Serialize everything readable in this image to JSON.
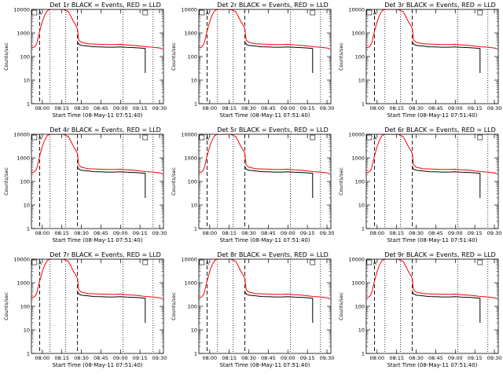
{
  "chart_data": [
    {
      "type": "line",
      "title": "Det 1r BLACK = Events, RED = LLD"
    },
    {
      "type": "line",
      "title": "Det 2r BLACK = Events, RED = LLD"
    },
    {
      "type": "line",
      "title": "Det 3r BLACK = Events, RED = LLD"
    },
    {
      "type": "line",
      "title": "Det 4r BLACK = Events, RED = LLD"
    },
    {
      "type": "line",
      "title": "Det 5r BLACK = Events, RED = LLD"
    },
    {
      "type": "line",
      "title": "Det 6r BLACK = Events, RED = LLD"
    },
    {
      "type": "line",
      "title": "Det 7r BLACK = Events, RED = LLD"
    },
    {
      "type": "line",
      "title": "Det 8r BLACK = Events, RED = LLD"
    },
    {
      "type": "line",
      "title": "Det 9r BLACK = Events, RED = LLD"
    }
  ],
  "shared": {
    "xlabel": "Start Time (08-May-11 07:51:40)",
    "ylabel": "Counts/sec",
    "x_ticks": [
      "08:00",
      "08:15",
      "08:30",
      "08:45",
      "09:00",
      "09:15",
      "09:30"
    ],
    "x_tick_minutes": [
      0,
      15,
      30,
      45,
      60,
      75,
      90
    ],
    "xlim_minutes": [
      -8.33,
      93
    ],
    "y_ticks": [
      "1",
      "10",
      "100",
      "1000",
      "10000"
    ],
    "ylim": [
      1,
      10000
    ],
    "yscale": "log",
    "marker_label": "A",
    "dashed_lines_minutes": [
      -2,
      27
    ],
    "dotted_lines_minutes": [
      6,
      18,
      62,
      85
    ],
    "series": [
      {
        "name": "Events",
        "color": "#000000"
      },
      {
        "name": "LLD",
        "color": "#ff0000"
      }
    ],
    "events_x": [
      27.5,
      28,
      30,
      35,
      40,
      45,
      50,
      55,
      60,
      65,
      70,
      75,
      79
    ],
    "events_y": [
      400,
      330,
      300,
      280,
      260,
      255,
      250,
      250,
      255,
      245,
      240,
      230,
      220
    ],
    "events_drop_x": 79,
    "events_drop_y": 20,
    "lld_x": [
      -8.3,
      -7,
      -6,
      -5,
      -4,
      -3,
      -2,
      0,
      2,
      4,
      6,
      8,
      10,
      12,
      14,
      16,
      18,
      20,
      22,
      24,
      26,
      27,
      28,
      30,
      35,
      40,
      45,
      50,
      55,
      60,
      65,
      70,
      75,
      80,
      85,
      90,
      92
    ],
    "lld_y": [
      250,
      240,
      260,
      300,
      400,
      700,
      1200,
      3000,
      6000,
      9000,
      10000,
      10000,
      10000,
      10000,
      10000,
      10000,
      9000,
      8000,
      5000,
      3000,
      2000,
      1500,
      500,
      400,
      350,
      340,
      330,
      320,
      320,
      330,
      310,
      300,
      280,
      260,
      250,
      230,
      220
    ]
  }
}
